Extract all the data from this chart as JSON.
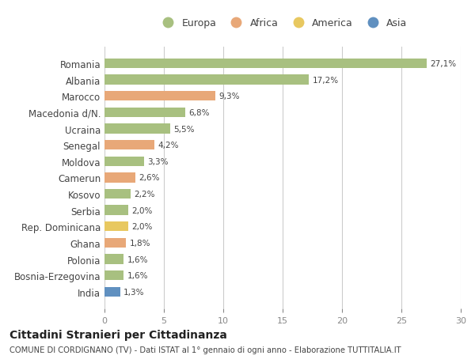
{
  "categories": [
    "Romania",
    "Albania",
    "Marocco",
    "Macedonia d/N.",
    "Ucraina",
    "Senegal",
    "Moldova",
    "Camerun",
    "Kosovo",
    "Serbia",
    "Rep. Dominicana",
    "Ghana",
    "Polonia",
    "Bosnia-Erzegovina",
    "India"
  ],
  "values": [
    27.1,
    17.2,
    9.3,
    6.8,
    5.5,
    4.2,
    3.3,
    2.6,
    2.2,
    2.0,
    2.0,
    1.8,
    1.6,
    1.6,
    1.3
  ],
  "labels": [
    "27,1%",
    "17,2%",
    "9,3%",
    "6,8%",
    "5,5%",
    "4,2%",
    "3,3%",
    "2,6%",
    "2,2%",
    "2,0%",
    "2,0%",
    "1,8%",
    "1,6%",
    "1,6%",
    "1,3%"
  ],
  "colors": [
    "#a8c080",
    "#a8c080",
    "#e8a878",
    "#a8c080",
    "#a8c080",
    "#e8a878",
    "#a8c080",
    "#e8a878",
    "#a8c080",
    "#a8c080",
    "#e8c860",
    "#e8a878",
    "#a8c080",
    "#a8c080",
    "#6090c0"
  ],
  "legend_labels": [
    "Europa",
    "Africa",
    "America",
    "Asia"
  ],
  "legend_colors": [
    "#a8c080",
    "#e8a878",
    "#e8c860",
    "#6090c0"
  ],
  "xlim": [
    0,
    30
  ],
  "xticks": [
    0,
    5,
    10,
    15,
    20,
    25,
    30
  ],
  "title": "Cittadini Stranieri per Cittadinanza",
  "subtitle": "COMUNE DI CORDIGNANO (TV) - Dati ISTAT al 1° gennaio di ogni anno - Elaborazione TUTTITALIA.IT",
  "bg_color": "#ffffff",
  "grid_color": "#cccccc",
  "bar_height": 0.6
}
